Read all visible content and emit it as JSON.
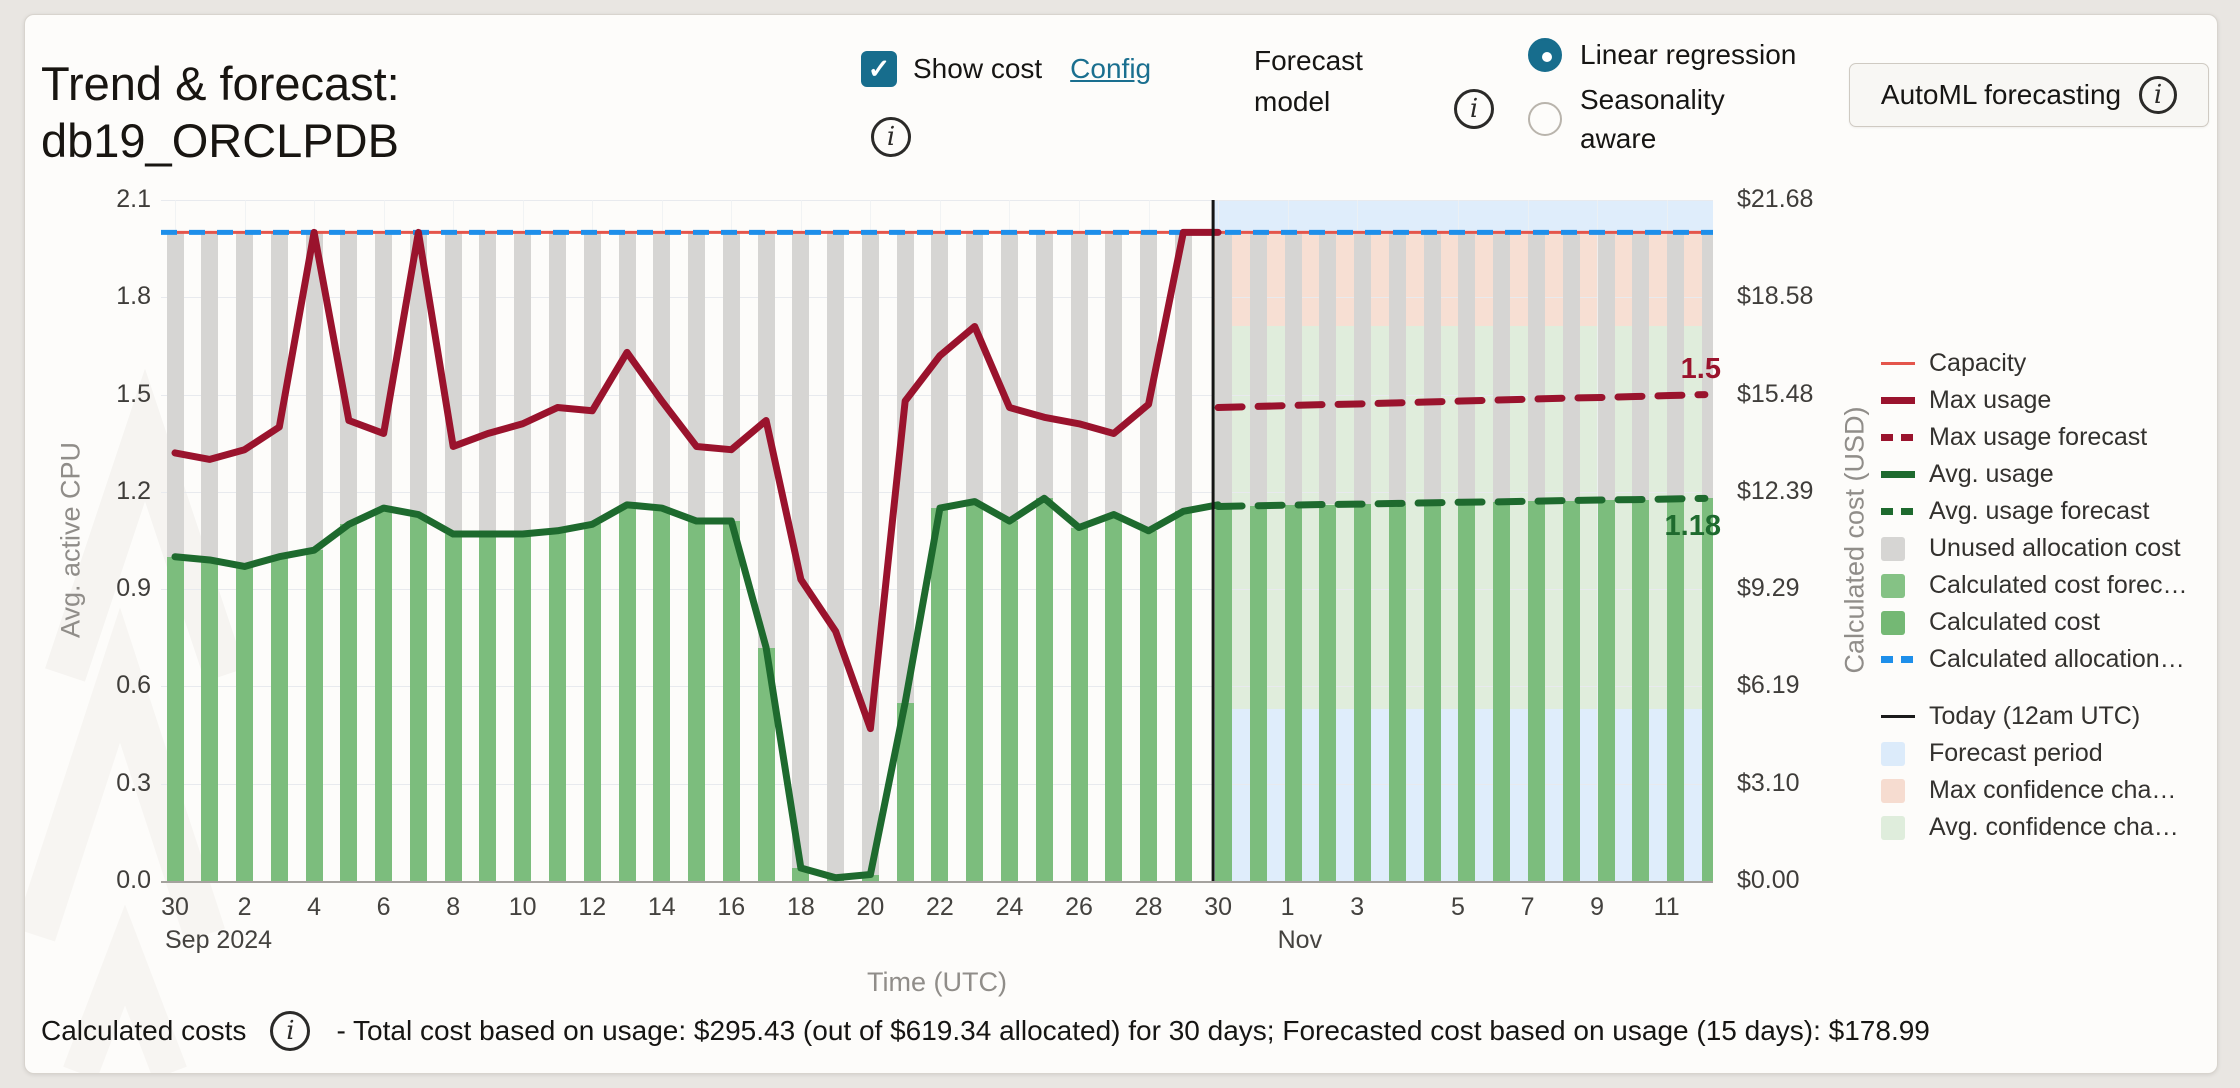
{
  "header": {
    "title": "Trend & forecast: db19_ORCLPDB",
    "show_cost": {
      "label": "Show cost",
      "checked": true,
      "config_label": "Config"
    },
    "forecast_model": {
      "label": "Forecast model",
      "options": [
        {
          "label": "Linear regression",
          "selected": true
        },
        {
          "label": "Seasonality aware",
          "selected": false
        }
      ]
    },
    "automl_button_label": "AutoML forecasting"
  },
  "chart_data": {
    "type": "bar+line",
    "title": "Trend & forecast: db19_ORCLPDB",
    "x_title": "Time (UTC)",
    "start_date": "Sep 30 2024",
    "today_date": "Oct 30 2024",
    "end_date": "Nov 13 2024",
    "days_total": 45,
    "today_index": 30,
    "capacity": 2.0,
    "y_left": {
      "title": "Avg. active CPU",
      "max": 2.1,
      "ticks": [
        "2.1",
        "1.8",
        "1.5",
        "1.2",
        "0.9",
        "0.6",
        "0.3",
        "0.0"
      ]
    },
    "y_right": {
      "title": "Calculated cost (USD)",
      "ticks": [
        "$21.68",
        "$18.58",
        "$15.48",
        "$12.39",
        "$9.29",
        "$6.19",
        "$3.10",
        "$0.00"
      ]
    },
    "x_ticks": [
      {
        "d": 0,
        "label": "30",
        "sub": "Sep 2024"
      },
      {
        "d": 2,
        "label": "2"
      },
      {
        "d": 4,
        "label": "4"
      },
      {
        "d": 6,
        "label": "6"
      },
      {
        "d": 8,
        "label": "8"
      },
      {
        "d": 10,
        "label": "10"
      },
      {
        "d": 12,
        "label": "12"
      },
      {
        "d": 14,
        "label": "14"
      },
      {
        "d": 16,
        "label": "16"
      },
      {
        "d": 18,
        "label": "18"
      },
      {
        "d": 20,
        "label": "20"
      },
      {
        "d": 22,
        "label": "22"
      },
      {
        "d": 24,
        "label": "24"
      },
      {
        "d": 26,
        "label": "26"
      },
      {
        "d": 28,
        "label": "28"
      },
      {
        "d": 30,
        "label": "30"
      },
      {
        "d": 32,
        "label": "1",
        "sub": "Nov"
      },
      {
        "d": 34,
        "label": "3"
      },
      {
        "d": 36.9,
        "label": "5"
      },
      {
        "d": 38.9,
        "label": "7"
      },
      {
        "d": 40.9,
        "label": "9"
      },
      {
        "d": 42.9,
        "label": "11"
      }
    ],
    "series": {
      "max_usage": [
        1.32,
        1.3,
        1.33,
        1.4,
        2.0,
        1.42,
        1.38,
        2.0,
        1.34,
        1.38,
        1.41,
        1.46,
        1.45,
        1.63,
        1.48,
        1.34,
        1.33,
        1.42,
        0.93,
        0.77,
        0.47,
        1.48,
        1.62,
        1.71,
        1.46,
        1.43,
        1.41,
        1.38,
        1.47,
        2.0,
        2.0
      ],
      "avg_usage": [
        1.0,
        0.99,
        0.97,
        1.0,
        1.02,
        1.1,
        1.15,
        1.13,
        1.07,
        1.07,
        1.07,
        1.08,
        1.1,
        1.16,
        1.15,
        1.11,
        1.11,
        0.72,
        0.04,
        0.01,
        0.02,
        0.55,
        1.15,
        1.17,
        1.11,
        1.18,
        1.09,
        1.13,
        1.08,
        1.14,
        1.16
      ],
      "max_usage_forecast": [
        1.46,
        1.463,
        1.466,
        1.469,
        1.471,
        1.474,
        1.477,
        1.48,
        1.483,
        1.486,
        1.489,
        1.491,
        1.494,
        1.497,
        1.5
      ],
      "avg_usage_forecast": [
        1.155,
        1.157,
        1.159,
        1.161,
        1.162,
        1.164,
        1.166,
        1.168,
        1.169,
        1.171,
        1.173,
        1.175,
        1.176,
        1.178,
        1.18
      ]
    },
    "bars_note": "Unused allocation bars span from capacity 2.0 down to avg usage; calculated cost bars span avg usage down to 0; right axis $10.32 per CPU",
    "bands": {
      "max_confidence": [
        1.71,
        2.0
      ],
      "avg_confidence": [
        0.53,
        1.71
      ]
    },
    "annotations": {
      "max_forecast_label": "1.5",
      "avg_forecast_label": "1.18"
    },
    "colors": {
      "capacity": "#e4554b",
      "max_usage": "#9a132d",
      "avg_usage": "#1e6a2e",
      "allocation_line": "#1e8fea",
      "cost_bar": "#7cbd7d",
      "unused_bar": "#d6d5d3",
      "forecast_bg": "#dfedfb",
      "max_confidence": "#f7dfd3",
      "avg_confidence": "#e0eddc",
      "today_line": "#151515",
      "gridline": "#e8eaee"
    },
    "legend": [
      {
        "label": "Capacity",
        "type": "line-thin",
        "color": "#e4554b"
      },
      {
        "label": "Max usage",
        "type": "line",
        "color": "#9a132d"
      },
      {
        "label": "Max usage forecast",
        "type": "dash",
        "color": "#9a132d"
      },
      {
        "label": "Avg. usage",
        "type": "line",
        "color": "#1e6a2e"
      },
      {
        "label": "Avg. usage forecast",
        "type": "dash",
        "color": "#1e6a2e"
      },
      {
        "label": "Unused allocation cost",
        "type": "square",
        "color": "#d6d5d3"
      },
      {
        "label": "Calculated cost forec…",
        "type": "square",
        "color": "#85c285"
      },
      {
        "label": "Calculated cost",
        "type": "square",
        "color": "#74b874"
      },
      {
        "label": "Calculated allocation…",
        "type": "dash",
        "color": "#1e8fea"
      },
      {
        "label": "Today (12am UTC)",
        "type": "line-thin",
        "color": "#1a1a1a",
        "gap_before": true
      },
      {
        "label": "Forecast period",
        "type": "square",
        "color": "#dcebfa"
      },
      {
        "label": "Max confidence cha…",
        "type": "square",
        "color": "#f6dcd0"
      },
      {
        "label": "Avg. confidence cha…",
        "type": "square",
        "color": "#dfeddc"
      }
    ]
  },
  "footer": {
    "label": "Calculated costs",
    "text": "- Total cost based on usage: $295.43 (out of $619.34 allocated) for 30 days; Forecasted cost based on usage (15 days): $178.99"
  }
}
